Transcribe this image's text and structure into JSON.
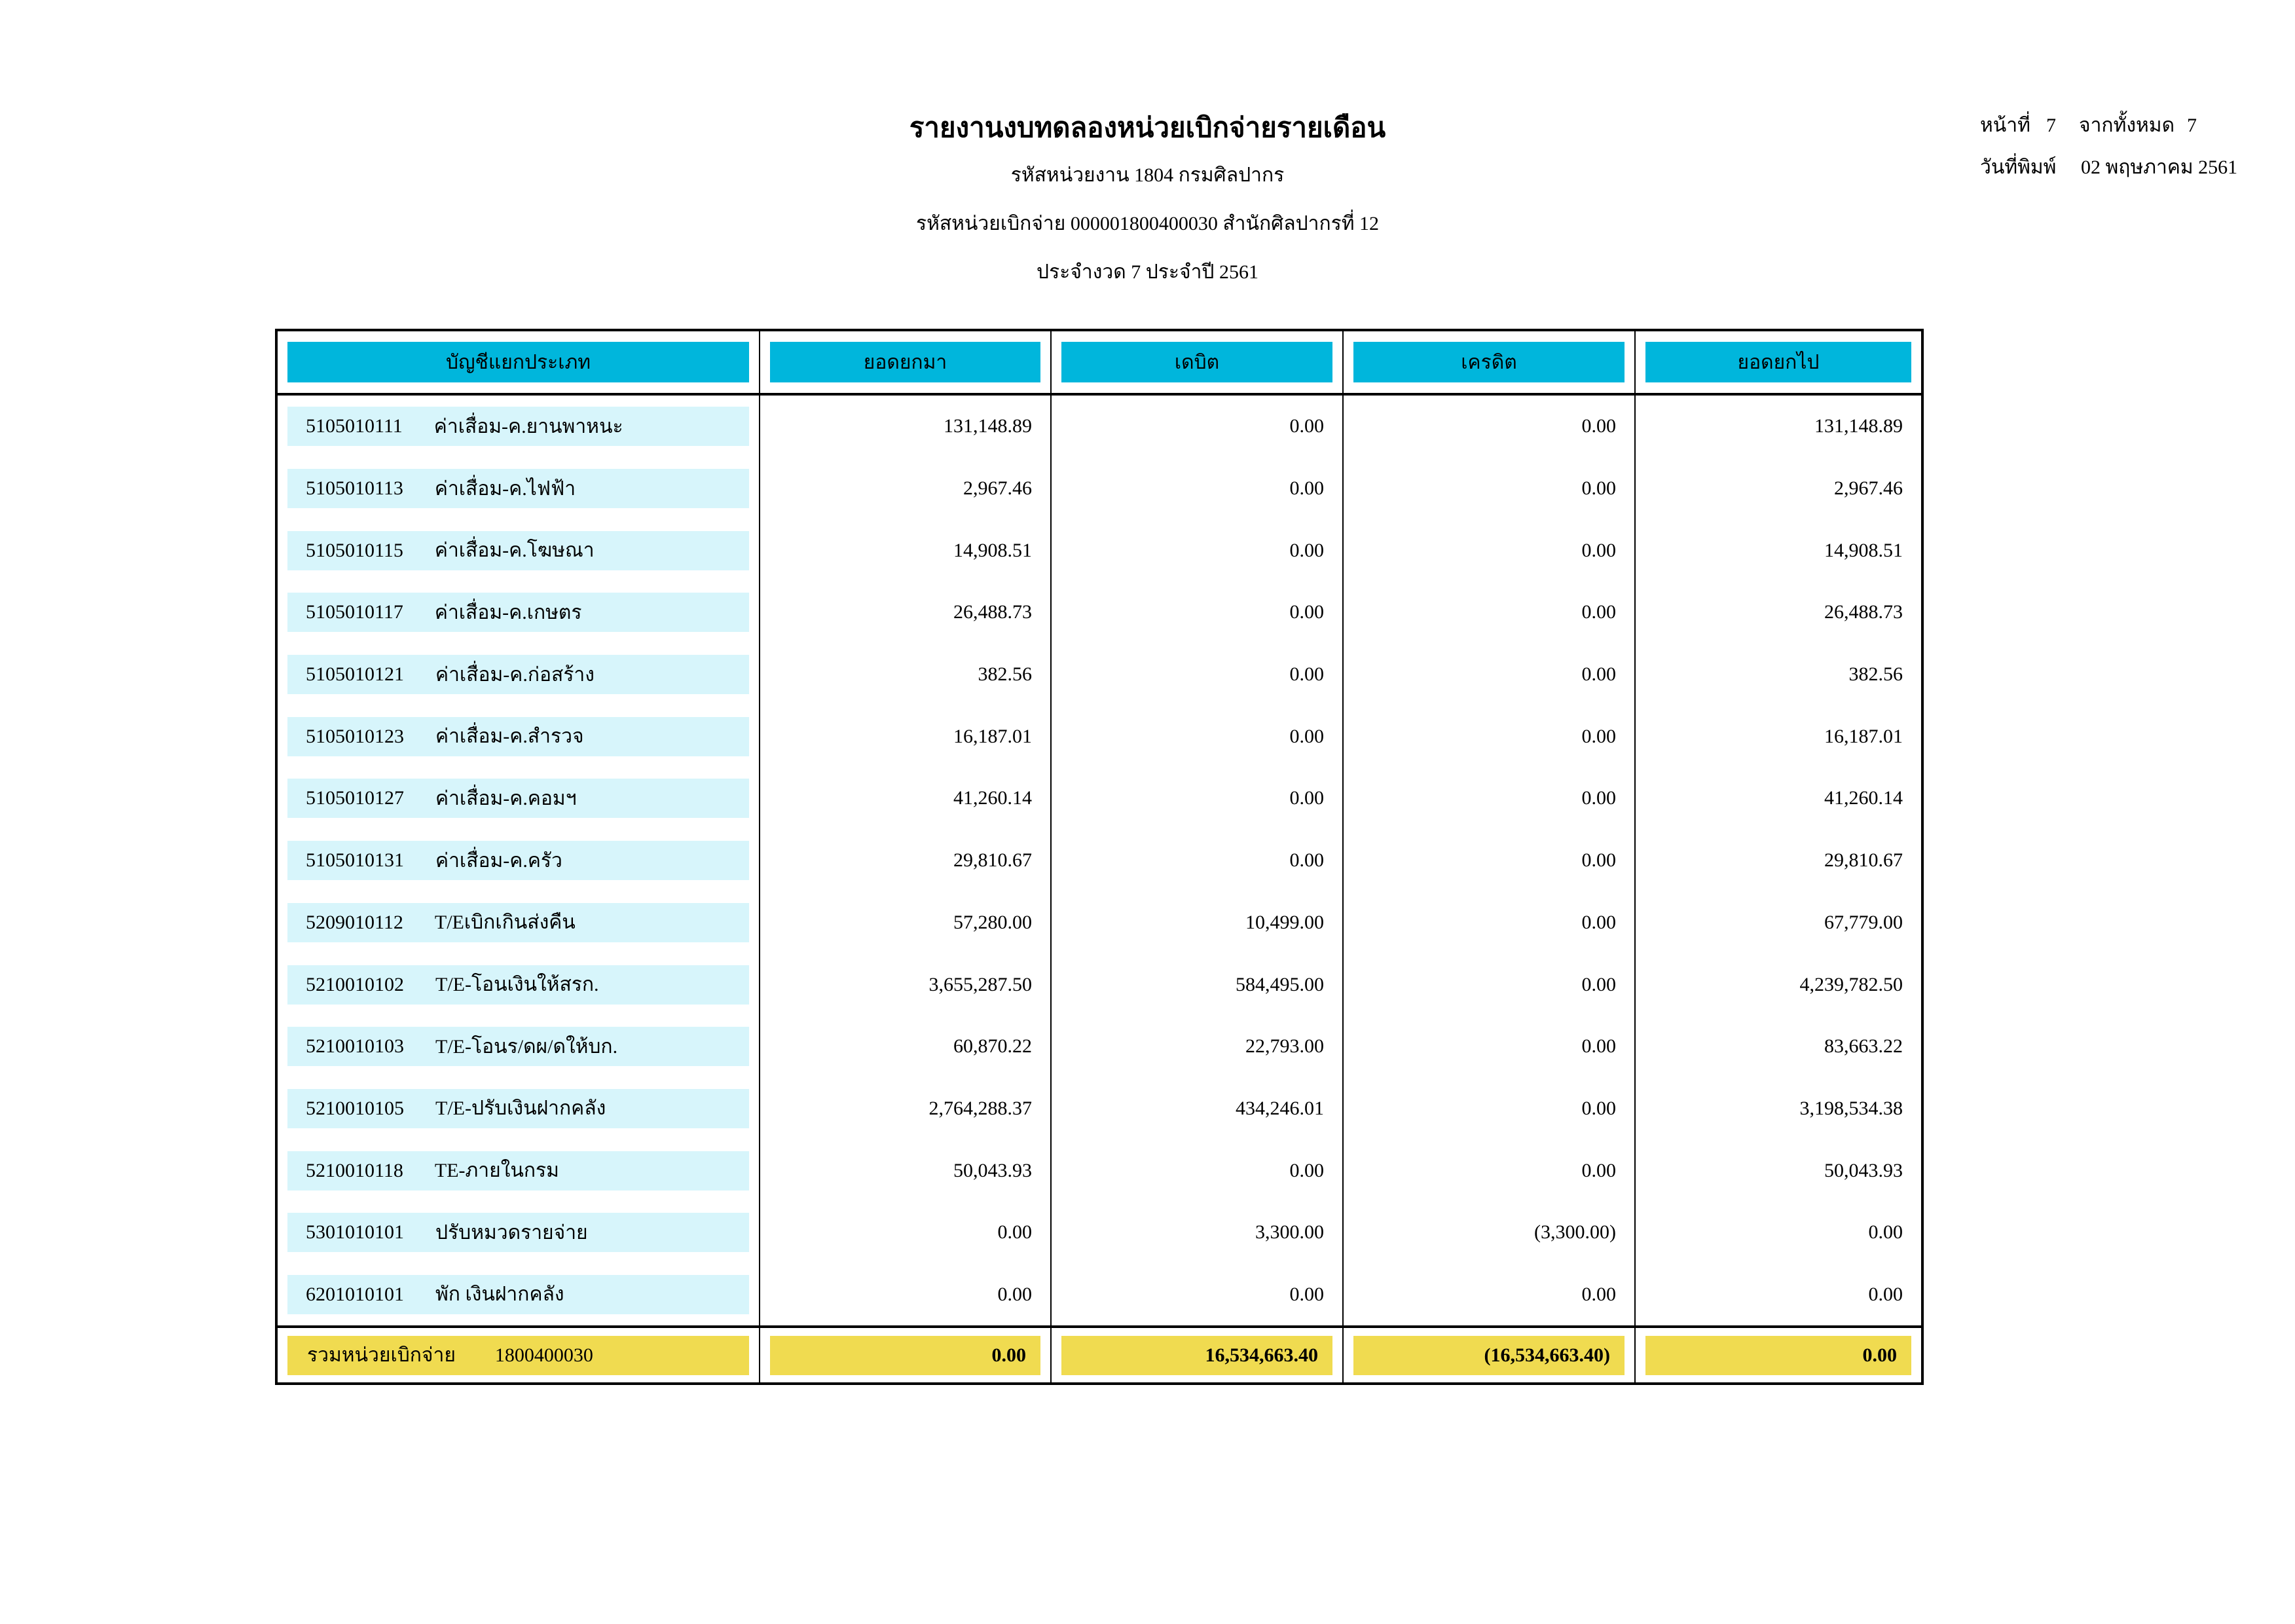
{
  "header": {
    "title": "รายงานงบทดลองหน่วยเบิกจ่ายรายเดือน",
    "agency_line": "รหัสหน่วยงาน 1804 กรมศิลปากร",
    "unit_line": "รหัสหน่วยเบิกจ่าย 000001800400030 สำนักศิลปากรที่ 12",
    "period_line": "ประจำงวด 7 ประจำปี 2561"
  },
  "page_info": {
    "page_label": "หน้าที่",
    "page_number": "7",
    "total_label": "จากทั้งหมด",
    "total_pages": "7",
    "print_date_label": "วันที่พิมพ์",
    "print_date": "02 พฤษภาคม 2561"
  },
  "table": {
    "columns": [
      "บัญชีแยกประเภท",
      "ยอดยกมา",
      "เดบิต",
      "เครดิต",
      "ยอดยกไป"
    ],
    "rows": [
      {
        "code": "5105010111",
        "name": "ค่าเสื่อม-ค.ยานพาหนะ",
        "bf": "131,148.89",
        "debit": "0.00",
        "credit": "0.00",
        "cf": "131,148.89"
      },
      {
        "code": "5105010113",
        "name": "ค่าเสื่อม-ค.ไฟฟ้า",
        "bf": "2,967.46",
        "debit": "0.00",
        "credit": "0.00",
        "cf": "2,967.46"
      },
      {
        "code": "5105010115",
        "name": "ค่าเสื่อม-ค.โฆษณา",
        "bf": "14,908.51",
        "debit": "0.00",
        "credit": "0.00",
        "cf": "14,908.51"
      },
      {
        "code": "5105010117",
        "name": "ค่าเสื่อม-ค.เกษตร",
        "bf": "26,488.73",
        "debit": "0.00",
        "credit": "0.00",
        "cf": "26,488.73"
      },
      {
        "code": "5105010121",
        "name": "ค่าเสื่อม-ค.ก่อสร้าง",
        "bf": "382.56",
        "debit": "0.00",
        "credit": "0.00",
        "cf": "382.56"
      },
      {
        "code": "5105010123",
        "name": "ค่าเสื่อม-ค.สำรวจ",
        "bf": "16,187.01",
        "debit": "0.00",
        "credit": "0.00",
        "cf": "16,187.01"
      },
      {
        "code": "5105010127",
        "name": "ค่าเสื่อม-ค.คอมฯ",
        "bf": "41,260.14",
        "debit": "0.00",
        "credit": "0.00",
        "cf": "41,260.14"
      },
      {
        "code": "5105010131",
        "name": "ค่าเสื่อม-ค.ครัว",
        "bf": "29,810.67",
        "debit": "0.00",
        "credit": "0.00",
        "cf": "29,810.67"
      },
      {
        "code": "5209010112",
        "name": "T/Eเบิกเกินส่งคืน",
        "bf": "57,280.00",
        "debit": "10,499.00",
        "credit": "0.00",
        "cf": "67,779.00"
      },
      {
        "code": "5210010102",
        "name": "T/E-โอนเงินให้สรก.",
        "bf": "3,655,287.50",
        "debit": "584,495.00",
        "credit": "0.00",
        "cf": "4,239,782.50"
      },
      {
        "code": "5210010103",
        "name": "T/E-โอนร/ดผ/ดให้บก.",
        "bf": "60,870.22",
        "debit": "22,793.00",
        "credit": "0.00",
        "cf": "83,663.22"
      },
      {
        "code": "5210010105",
        "name": "T/E-ปรับเงินฝากคลัง",
        "bf": "2,764,288.37",
        "debit": "434,246.01",
        "credit": "0.00",
        "cf": "3,198,534.38"
      },
      {
        "code": "5210010118",
        "name": "TE-ภายในกรม",
        "bf": "50,043.93",
        "debit": "0.00",
        "credit": "0.00",
        "cf": "50,043.93"
      },
      {
        "code": "5301010101",
        "name": "ปรับหมวดรายจ่าย",
        "bf": "0.00",
        "debit": "3,300.00",
        "credit": "(3,300.00)",
        "cf": "0.00"
      },
      {
        "code": "6201010101",
        "name": "พัก เงินฝากคลัง",
        "bf": "0.00",
        "debit": "0.00",
        "credit": "0.00",
        "cf": "0.00"
      }
    ],
    "total": {
      "label": "รวมหน่วยเบิกจ่าย",
      "code": "1800400030",
      "bf": "0.00",
      "debit": "16,534,663.40",
      "credit": "(16,534,663.40)",
      "cf": "0.00"
    }
  },
  "colors": {
    "header_fill": "#00b6dc",
    "row_label_fill": "#d7f5fb",
    "total_fill": "#f0db50"
  }
}
